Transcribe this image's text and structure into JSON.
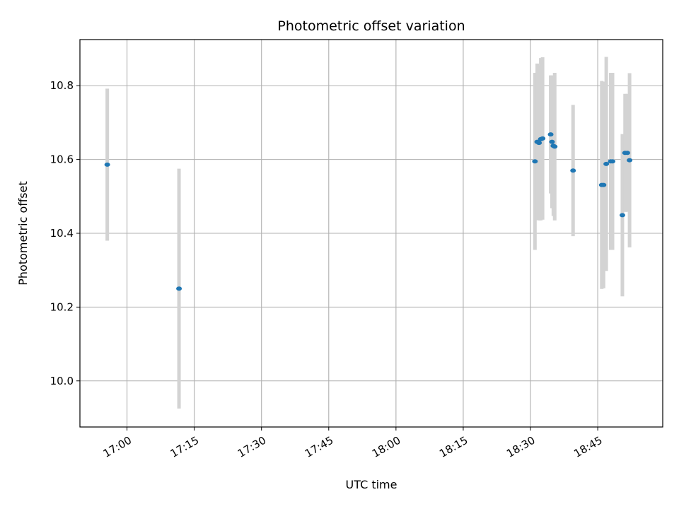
{
  "chart_data": {
    "type": "scatter",
    "title": "Photometric offset variation",
    "xlabel": "UTC time",
    "ylabel": "Photometric offset",
    "x_ticks": [
      "17:00",
      "17:15",
      "17:30",
      "17:45",
      "18:00",
      "18:15",
      "18:30",
      "18:45"
    ],
    "y_ticks": [
      "10.0",
      "10.2",
      "10.4",
      "10.6",
      "10.8"
    ],
    "xlim": [
      "16:49.5",
      "18:59.5"
    ],
    "ylim": [
      9.875,
      10.925
    ],
    "grid": true,
    "marker_color": "#1f77b4",
    "errorbar_color": "#d3d3d3",
    "points": [
      {
        "t": "16:55.6",
        "y": 10.586,
        "err": 0.206
      },
      {
        "t": "17:11.6",
        "y": 10.25,
        "err": 0.325
      },
      {
        "t": "18:31.0",
        "y": 10.595,
        "err": 0.24
      },
      {
        "t": "18:31.5",
        "y": 10.648,
        "err": 0.212
      },
      {
        "t": "18:31.9",
        "y": 10.645,
        "err": 0.21
      },
      {
        "t": "18:32.3",
        "y": 10.655,
        "err": 0.22
      },
      {
        "t": "18:32.7",
        "y": 10.657,
        "err": 0.22
      },
      {
        "t": "18:34.5",
        "y": 10.668,
        "err": 0.16
      },
      {
        "t": "18:34.8",
        "y": 10.648,
        "err": 0.18
      },
      {
        "t": "18:35.1",
        "y": 10.637,
        "err": 0.19
      },
      {
        "t": "18:35.4",
        "y": 10.635,
        "err": 0.2
      },
      {
        "t": "18:39.5",
        "y": 10.57,
        "err": 0.178
      },
      {
        "t": "18:45.9",
        "y": 10.531,
        "err": 0.282
      },
      {
        "t": "18:46.3",
        "y": 10.531,
        "err": 0.28
      },
      {
        "t": "18:46.9",
        "y": 10.588,
        "err": 0.29
      },
      {
        "t": "18:47.9",
        "y": 10.595,
        "err": 0.24
      },
      {
        "t": "18:48.3",
        "y": 10.595,
        "err": 0.24
      },
      {
        "t": "18:50.5",
        "y": 10.449,
        "err": 0.22
      },
      {
        "t": "18:51.1",
        "y": 10.618,
        "err": 0.16
      },
      {
        "t": "18:51.6",
        "y": 10.618,
        "err": 0.16
      },
      {
        "t": "18:52.1",
        "y": 10.598,
        "err": 0.236
      }
    ]
  }
}
